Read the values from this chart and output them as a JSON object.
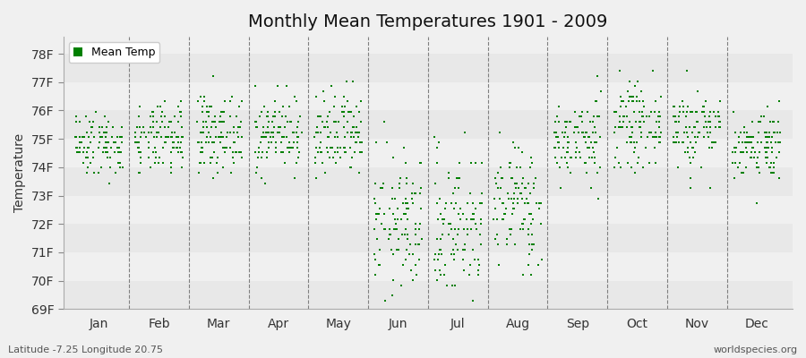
{
  "title": "Monthly Mean Temperatures 1901 - 2009",
  "ylabel": "Temperature",
  "xlabel_labels": [
    "Jan",
    "Feb",
    "Mar",
    "Apr",
    "May",
    "Jun",
    "Jul",
    "Aug",
    "Sep",
    "Oct",
    "Nov",
    "Dec"
  ],
  "dot_color": "#008000",
  "ylim": [
    69,
    78.6
  ],
  "yticks": [
    69,
    70,
    71,
    72,
    73,
    74,
    75,
    76,
    77,
    78
  ],
  "ytick_labels": [
    "69F",
    "70F",
    "71F",
    "72F",
    "73F",
    "74F",
    "75F",
    "76F",
    "77F",
    "78F"
  ],
  "legend_label": "Mean Temp",
  "footer_left": "Latitude -7.25 Longitude 20.75",
  "footer_right": "worldspecies.org",
  "year_start": 1901,
  "year_end": 2009,
  "monthly_means": [
    74.84,
    74.95,
    75.2,
    75.2,
    75.02,
    72.0,
    71.96,
    72.68,
    74.93,
    75.5,
    75.38,
    74.81
  ],
  "monthly_stds": [
    0.55,
    0.6,
    0.65,
    0.65,
    0.8,
    1.2,
    1.3,
    1.1,
    0.7,
    0.7,
    0.7,
    0.6
  ],
  "seed": 42,
  "band_colors": [
    "#e8e8e8",
    "#f0f0f0"
  ],
  "fig_bg": "#f0f0f0",
  "ax_bg": "#f0f0f0"
}
